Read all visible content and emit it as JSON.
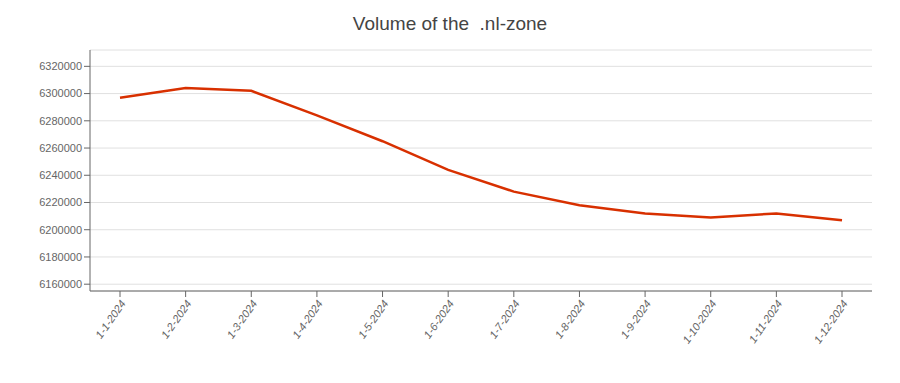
{
  "chart_data": {
    "type": "line",
    "title": "Volume of the  .nl-zone",
    "categories": [
      "1-1-2024",
      "1-2-2024",
      "1-3-2024",
      "1-4-2024",
      "1-5-2024",
      "1-6-2024",
      "1-7-2024",
      "1-8-2024",
      "1-9-2024",
      "1-10-2024",
      "1-11-2024",
      "1-12-2024"
    ],
    "values": [
      6297000,
      6304000,
      6302000,
      6284000,
      6265000,
      6244000,
      6228000,
      6218000,
      6212000,
      6209000,
      6212000,
      6207000
    ],
    "color": "#D83000",
    "ylim": [
      6155000,
      6332000
    ],
    "yticks": [
      6160000,
      6180000,
      6200000,
      6220000,
      6240000,
      6260000,
      6280000,
      6300000,
      6320000
    ],
    "grid": true
  }
}
